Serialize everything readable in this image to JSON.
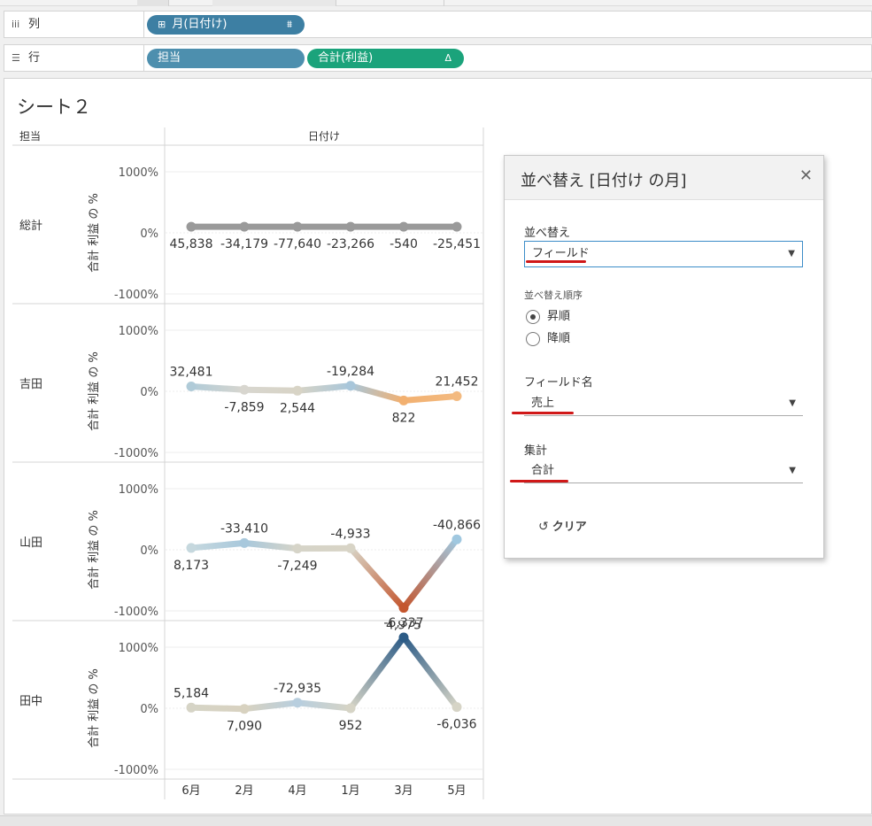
{
  "shelves": {
    "columns": {
      "label": "列",
      "pill": {
        "label": "月(日付け)",
        "prefix": "⊞",
        "suffix": "⩩"
      }
    },
    "rows": {
      "label": "行",
      "pills": [
        {
          "label": "担当"
        },
        {
          "label": "合計(利益)",
          "suffix": "Δ"
        }
      ]
    }
  },
  "sheet": {
    "title": "シート２",
    "row_header": "担当",
    "col_header": "日付け"
  },
  "chart_data": {
    "type": "line",
    "x_categories": [
      "6月",
      "2月",
      "4月",
      "1月",
      "3月",
      "5月"
    ],
    "y_axis_label": "合計 利益 の %",
    "y_ticks": [
      "1000%",
      "0%",
      "-1000%"
    ],
    "ylim": [
      -1000,
      1000
    ],
    "panes": [
      {
        "name": "総計",
        "values": [
          100,
          100,
          100,
          100,
          100,
          100
        ],
        "labels": [
          "45,838",
          "-34,179",
          "-77,640",
          "-23,266",
          "-540",
          "-25,451"
        ],
        "label_pos": [
          "below",
          "below",
          "below",
          "below",
          "below",
          "below"
        ]
      },
      {
        "name": "吉田",
        "values": [
          80,
          25,
          10,
          90,
          -150,
          -80
        ],
        "labels": [
          "32,481",
          "-7,859",
          "2,544",
          "-19,284",
          "822",
          "21,452"
        ],
        "label_pos": [
          "above",
          "below",
          "below",
          "above",
          "below",
          "above"
        ]
      },
      {
        "name": "山田",
        "values": [
          30,
          110,
          20,
          25,
          -950,
          170
        ],
        "labels": [
          "8,173",
          "-33,410",
          "-7,249",
          "-4,933",
          "4,975",
          "-40,866"
        ],
        "label_pos": [
          "below",
          "above",
          "below",
          "above",
          "below",
          "above"
        ]
      },
      {
        "name": "田中",
        "values": [
          10,
          -10,
          90,
          0,
          1160,
          20
        ],
        "labels": [
          "5,184",
          "7,090",
          "-72,935",
          "952",
          "-6,337",
          "-6,036"
        ],
        "label_pos": [
          "above",
          "below",
          "above",
          "below",
          "above",
          "below"
        ]
      }
    ]
  },
  "dialog": {
    "title": "並べ替え [日付け の月]",
    "sort_by_label": "並べ替え",
    "sort_by_value": "フィールド",
    "order_label": "並べ替え順序",
    "order_options": [
      {
        "label": "昇順",
        "selected": true
      },
      {
        "label": "降順",
        "selected": false
      }
    ],
    "field_name_label": "フィールド名",
    "field_name_value": "売上",
    "aggregation_label": "集計",
    "aggregation_value": "合計",
    "clear_label": "クリア"
  }
}
